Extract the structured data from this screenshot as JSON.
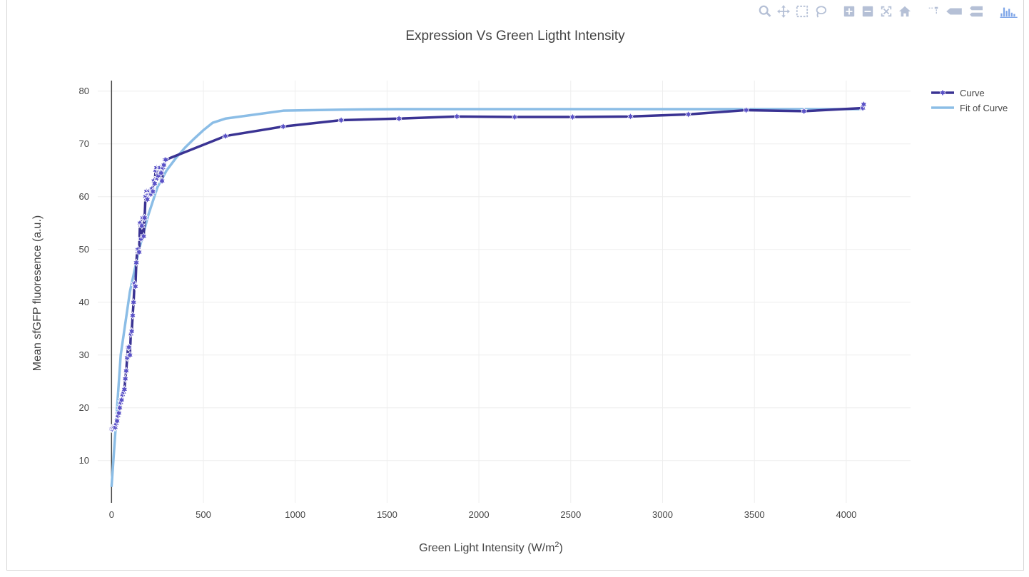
{
  "modebar": {
    "buttons": [
      "zoom-icon",
      "pan-icon",
      "box-select-icon",
      "lasso-select-icon",
      "zoom-in-icon",
      "zoom-out-icon",
      "autoscale-icon",
      "reset-axes-icon",
      "spike-lines-icon",
      "hover-closest-icon",
      "hover-compare-icon",
      "plotly-logo-icon"
    ]
  },
  "colors": {
    "curve": "#3a3393",
    "fit": "#8bbde6",
    "grid": "#eeeeee",
    "zeroline": "#444444"
  },
  "chart_data": {
    "type": "line",
    "title": "Expression Vs Green Ligtht Intensity",
    "xlabel": "Green Light  Intensity (W/m",
    "xlabel_sup": "2",
    "xlabel_end": ")",
    "ylabel": "Mean sfGFP fluoresence (a.u.)",
    "xlim": [
      -75,
      4350
    ],
    "ylim": [
      2,
      82
    ],
    "xticks": [
      0,
      500,
      1000,
      1500,
      2000,
      2500,
      3000,
      3500,
      4000
    ],
    "yticks": [
      10,
      20,
      30,
      40,
      50,
      60,
      70,
      80
    ],
    "grid": true,
    "legend_position": "top-right",
    "series": [
      {
        "name": "Curve",
        "mode": "lines+markers",
        "x": [
          0,
          5,
          10,
          15,
          20,
          25,
          30,
          35,
          40,
          45,
          50,
          55,
          60,
          65,
          70,
          75,
          80,
          85,
          90,
          95,
          100,
          105,
          110,
          115,
          120,
          125,
          130,
          135,
          140,
          145,
          150,
          155,
          160,
          165,
          170,
          175,
          180,
          185,
          190,
          195,
          200,
          205,
          210,
          215,
          220,
          225,
          230,
          235,
          240,
          245,
          250,
          255,
          260,
          265,
          270,
          275,
          280,
          285,
          290,
          295,
          620,
          935,
          1250,
          1565,
          1880,
          2195,
          2510,
          2825,
          3140,
          3455,
          3770,
          4090,
          4095
        ],
        "y": [
          16,
          16,
          16.2,
          16.5,
          16.3,
          17,
          17.5,
          18.5,
          19,
          20,
          21,
          21.5,
          22.5,
          23,
          23.5,
          25.5,
          27,
          29.5,
          31.5,
          31.5,
          30,
          34,
          34.5,
          37.5,
          40,
          43.5,
          43,
          47.5,
          50,
          50,
          49.5,
          55,
          52,
          54.5,
          56,
          52.5,
          56,
          60,
          61,
          59.5,
          60.5,
          61,
          60.5,
          60.5,
          61.5,
          61,
          63,
          62.5,
          65,
          65.5,
          63.5,
          64,
          65.5,
          65.5,
          64.5,
          63,
          65.5,
          66,
          67,
          67,
          71.5,
          73.3,
          74.5,
          74.8,
          75.2,
          75.1,
          75.1,
          75.2,
          75.6,
          76.4,
          76.2,
          76.8,
          77.5
        ]
      },
      {
        "name": "Fit of Curve",
        "mode": "lines",
        "x": [
          0,
          50,
          100,
          150,
          200,
          250,
          300,
          350,
          400,
          450,
          500,
          550,
          620,
          935,
          1250,
          1565,
          1880,
          2195,
          2510,
          2825,
          3140,
          3455,
          3770,
          4095
        ],
        "y": [
          5,
          30,
          42,
          50,
          56.5,
          61.8,
          65,
          67.3,
          69.3,
          71,
          72.6,
          74,
          74.8,
          76.3,
          76.5,
          76.6,
          76.6,
          76.6,
          76.6,
          76.6,
          76.6,
          76.6,
          76.6,
          76.6
        ]
      }
    ]
  }
}
